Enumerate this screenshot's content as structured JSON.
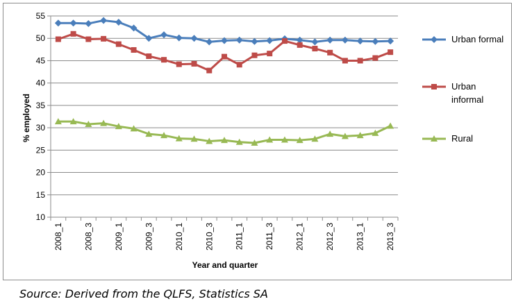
{
  "chart_data": {
    "type": "line",
    "xlabel": "Year and quarter",
    "ylabel": "% employed",
    "ylim": [
      10,
      55
    ],
    "yticks": [
      10,
      15,
      20,
      25,
      30,
      35,
      40,
      45,
      50,
      55
    ],
    "grid": "horizontal",
    "legend_position": "right",
    "categories": [
      "2008_1",
      "2008_2",
      "2008_3",
      "2008_4",
      "2009_1",
      "2009_2",
      "2009_3",
      "2009_4",
      "2010_1",
      "2010_2",
      "2010_3",
      "2010_4",
      "2011_1",
      "2011_2",
      "2011_3",
      "2011_4",
      "2012_1",
      "2012_2",
      "2012_3",
      "2012_4",
      "2013_1",
      "2013_2",
      "2013_3"
    ],
    "tick_labels": [
      "2008_1",
      "",
      "2008_3",
      "",
      "2009_1",
      "",
      "2009_3",
      "",
      "2010_1",
      "",
      "2010_3",
      "",
      "2011_1",
      "",
      "2011_3",
      "",
      "2012_1",
      "",
      "2012_3",
      "",
      "2013_1",
      "",
      "2013_3"
    ],
    "series": [
      {
        "name": "Urban formal",
        "color": "#4a7ebb",
        "marker": "diamond",
        "values": [
          53.4,
          53.4,
          53.3,
          54.0,
          53.6,
          52.3,
          50.0,
          50.8,
          50.1,
          50.0,
          49.2,
          49.5,
          49.6,
          49.3,
          49.5,
          49.9,
          49.6,
          49.2,
          49.6,
          49.6,
          49.4,
          49.3,
          49.4
        ]
      },
      {
        "name": "Urban\ninformal",
        "color": "#be4b48",
        "marker": "square",
        "values": [
          49.8,
          51.0,
          49.8,
          49.9,
          48.7,
          47.4,
          46.0,
          45.2,
          44.2,
          44.3,
          42.8,
          45.9,
          44.1,
          46.2,
          46.6,
          49.4,
          48.5,
          47.7,
          46.8,
          45.0,
          45.0,
          45.6,
          46.9
        ]
      },
      {
        "name": "Rural",
        "color": "#98b954",
        "marker": "triangle",
        "values": [
          31.4,
          31.4,
          30.8,
          31.0,
          30.3,
          29.8,
          28.6,
          28.3,
          27.6,
          27.5,
          27.0,
          27.2,
          26.8,
          26.6,
          27.3,
          27.3,
          27.2,
          27.5,
          28.6,
          28.1,
          28.3,
          28.8,
          30.4
        ]
      }
    ]
  },
  "source": "Source: Derived from the QLFS, Statistics SA"
}
